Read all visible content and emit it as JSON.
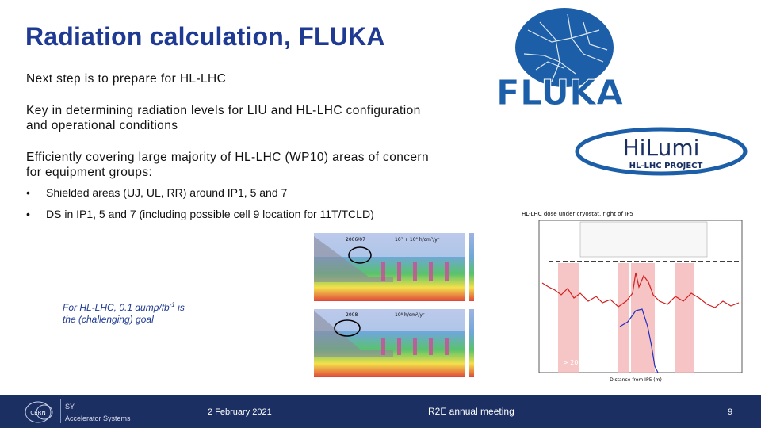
{
  "slide": {
    "title": "Radiation calculation, FLUKA",
    "para1": "Next step is to prepare for HL-LHC",
    "para2_line1": "Key in determining radiation levels for LIU and HL-LHC configuration",
    "para2_line2": "and operational conditions",
    "para3_line1": "Efficiently covering large majority of HL-LHC (WP10) areas of concern",
    "para3_line2": "for equipment groups:",
    "bullets": [
      {
        "marker": "•",
        "text": "Shielded areas (UJ, UL, RR) around IP1, 5 and 7"
      },
      {
        "marker": "•",
        "text": "DS in IP1, 5 and 7 (including possible cell 9 location for 11T/TCLD)"
      }
    ],
    "note_line1": "For HL-LHC, 0.1 dump/fb",
    "note_sup": "-1",
    "note_line1_end": " is",
    "note_line2": "the (challenging) goal"
  },
  "logos": {
    "fluka_text": "FLUKA",
    "hilumi_text": "HiLumi",
    "hilumi_sub": "HL-LHC PROJECT",
    "cern_text": "CERN",
    "sy_line1": "SY",
    "sy_line2": "Accelerator Systems"
  },
  "figures": {
    "left_top_label": "2006/07",
    "left_top_formula": "10⁷ + 10⁶ h/cm²/yr",
    "left_bottom_label": "2008",
    "left_bottom_formula": "10⁶ h/cm²/yr",
    "right_title": "HL-LHC dose under cryostat, right of IP5",
    "right_annotation": "> 200 Gy",
    "right_xlabel": "Distance from IP5 (m)"
  },
  "footer": {
    "date": "2 February 2021",
    "meeting": "R2E annual meeting",
    "page": "9"
  },
  "colors": {
    "title": "#1f3a93",
    "footer_bg": "#1b2f63",
    "fluka_blue": "#1c5fa8"
  }
}
